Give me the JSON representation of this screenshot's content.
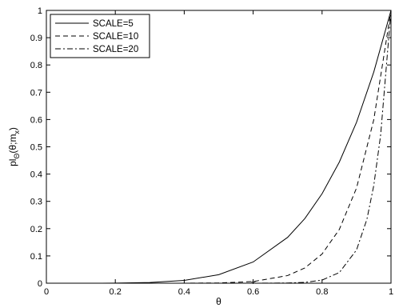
{
  "chart_data": {
    "type": "line",
    "title": "",
    "xlabel": "θ",
    "ylabel": "pl_Θ(θ;m_x)",
    "ylabel_parts": {
      "base": "pl",
      "sub1": "Θ",
      "mid": "(θ;m",
      "sub2": "x",
      "end": ")"
    },
    "xlim": [
      0,
      1
    ],
    "ylim": [
      0,
      1
    ],
    "xticks": [
      0,
      0.2,
      0.4,
      0.6,
      0.8,
      1
    ],
    "xtick_labels": [
      "0",
      "0.2",
      "0.4",
      "0.6",
      "0.8",
      "1"
    ],
    "yticks": [
      0,
      0.1,
      0.2,
      0.3,
      0.4,
      0.5,
      0.6,
      0.7,
      0.8,
      0.9,
      1
    ],
    "ytick_labels": [
      "0",
      "0.1",
      "0.2",
      "0.3",
      "0.4",
      "0.5",
      "0.6",
      "0.7",
      "0.8",
      "0.9",
      "1"
    ],
    "grid": false,
    "legend_position": "top-left",
    "series": [
      {
        "name": "SCALE=5",
        "style": "solid",
        "x": [
          0,
          0.1,
          0.2,
          0.3,
          0.4,
          0.5,
          0.6,
          0.7,
          0.75,
          0.8,
          0.85,
          0.9,
          0.95,
          1
        ],
        "y": [
          0,
          0,
          0.0003,
          0.0024,
          0.0102,
          0.0313,
          0.0778,
          0.168,
          0.237,
          0.328,
          0.444,
          0.59,
          0.774,
          1
        ]
      },
      {
        "name": "SCALE=10",
        "style": "dashed",
        "x": [
          0,
          0.2,
          0.4,
          0.5,
          0.6,
          0.7,
          0.75,
          0.8,
          0.85,
          0.9,
          0.95,
          1
        ],
        "y": [
          0,
          0,
          0.0001,
          0.001,
          0.006,
          0.028,
          0.056,
          0.107,
          0.197,
          0.349,
          0.599,
          1
        ]
      },
      {
        "name": "SCALE=20",
        "style": "dashdot",
        "x": [
          0,
          0.4,
          0.6,
          0.7,
          0.75,
          0.8,
          0.85,
          0.9,
          0.93,
          0.95,
          0.97,
          1
        ],
        "y": [
          0,
          0,
          0,
          0.0008,
          0.003,
          0.0115,
          0.039,
          0.122,
          0.234,
          0.358,
          0.544,
          1
        ]
      }
    ],
    "annotations": [
      {
        "text": "+",
        "x": 0.6,
        "y": 0.006
      }
    ],
    "colors": {
      "line": "#000000",
      "background": "#ffffff"
    }
  }
}
